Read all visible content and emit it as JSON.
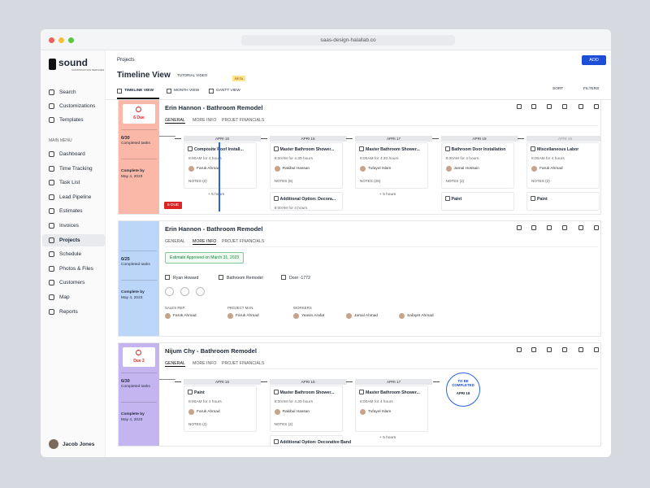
{
  "browser": {
    "url": "saas-design-halallab.co"
  },
  "sidebar": {
    "brand": "sound",
    "brand_sub": "CONSTRUCTION SERVICES",
    "top": [
      "Search",
      "Customizations",
      "Templates"
    ],
    "menu_label": "MAIN MENU",
    "menu": [
      "Dashboard",
      "Time Tracking",
      "Task List",
      "Lead Pipeline",
      "Estimates",
      "Invoices",
      "Projects",
      "Schedule",
      "Photos & Files",
      "Customers",
      "Map",
      "Reports"
    ],
    "user": "Jacob Jones"
  },
  "header": {
    "breadcrumb": "Projects",
    "add": "ADD",
    "title": "Timeline View",
    "tutorial": "TUTORIAL VIDEO",
    "beta": "BETA",
    "tabs": [
      "TIMELINE VIEW",
      "MONTH VIEW",
      "GANTT VIEW"
    ],
    "sort": "SORT",
    "filters": "FILTERS"
  },
  "projects": [
    {
      "status": "6 Due",
      "progress": "6/30",
      "progress_label": "Completed tasks",
      "complete_label": "Complete by",
      "complete_date": "May 4, 2023",
      "name": "Erin Hannon - Bathroom Remodel",
      "tabs": [
        "GENERAL",
        "MORE INFO",
        "PROJET FINANCIALS"
      ],
      "due_badge": "6 DUE",
      "columns": [
        {
          "date": "APRI 15",
          "tasks": [
            {
              "title": "Composite Roof Install...",
              "time": "8:00AM for 4 hours",
              "person": "Faruk Ahmad",
              "notes": "NOTES (2)"
            }
          ],
          "extra": "+ 5 hours"
        },
        {
          "date": "APRI 16",
          "tasks": [
            {
              "title": "Master Bathroom Shower...",
              "time": "8:00AM for 4.30 hours",
              "person": "Rakibul Hassan",
              "notes": "NOTES (8)"
            },
            {
              "title": "Additional Option: Decora...",
              "time": "8:00AM for 4 hours"
            }
          ]
        },
        {
          "date": "APRI 17",
          "tasks": [
            {
              "title": "Master Bathroom Shower...",
              "time": "8:00AM for 4.30 hours",
              "person": "Tufayel Islam",
              "notes": "NOTES (29)"
            }
          ],
          "extra": "+ 5 hours"
        },
        {
          "date": "APRI 18",
          "tasks": [
            {
              "title": "Bathroom Door Installation",
              "time": "8:00AM for 4 hours",
              "person": "Jamal Hossain",
              "notes": "NOTES (2)"
            },
            {
              "title": "Paint"
            }
          ]
        },
        {
          "date": "APRI 15",
          "tasks": [
            {
              "title": "Miscellaneous Labor",
              "time": "8:00AM for 4 hours",
              "person": "Faruk Ahmad",
              "notes": "NOTES (2)"
            },
            {
              "title": "Paint"
            }
          ]
        }
      ]
    },
    {
      "progress": "6/25",
      "progress_label": "Completed tasks",
      "complete_label": "Complete by",
      "complete_date": "May 4, 2023",
      "name": "Erin Hannon - Bathroom Remodel",
      "tabs": [
        "GENERAL",
        "MORE INFO",
        "PROJET FINANCIALS"
      ],
      "info": {
        "estimate": "Estimate Approved on March 31, 2023",
        "client": "Ryan Howard",
        "type": "Bathroom Remodel",
        "door": "Door -1772",
        "sales_label": "SALES REP.",
        "sales": "Faruk Ahmad",
        "pm_label": "PROJECT MAN.",
        "pm": "Faruk Ahmad",
        "workers_label": "WORKERS",
        "workers": [
          "Yeasin Arafat",
          "Jamal Ahmad",
          "Safayet Ahmad"
        ]
      }
    },
    {
      "status": "Due 2",
      "progress": "6/30",
      "progress_label": "Completed tasks",
      "complete_label": "Complete by",
      "complete_date": "May 4, 2023",
      "name": "Nijum Chy - Bathroom Remodel",
      "tabs": [
        "GENERAL",
        "MORE INFO",
        "PROJET FINANCIALS"
      ],
      "columns": [
        {
          "date": "APRI 15",
          "tasks": [
            {
              "title": "Paint",
              "time": "8:00AM for 4 hours",
              "person": "Faruk Ahmad",
              "notes": "NOTES (2)"
            }
          ]
        },
        {
          "date": "APRI 16",
          "tasks": [
            {
              "title": "Master Bathroom Shower...",
              "time": "8:00AM for 4.30 hours",
              "person": "Rakibul Hassan",
              "notes": "NOTES (2)"
            },
            {
              "title": "Additional Option: Decorative Band"
            }
          ]
        },
        {
          "date": "APRI 17",
          "tasks": [
            {
              "title": "Master Bathroom Shower...",
              "time": "8:00AM for 4 hours",
              "person": "Tufayel Islam"
            }
          ],
          "extra": "+ 5 hours"
        }
      ],
      "pending": {
        "label": "TO BE COMPLETED",
        "date": "APRI 18"
      }
    }
  ]
}
